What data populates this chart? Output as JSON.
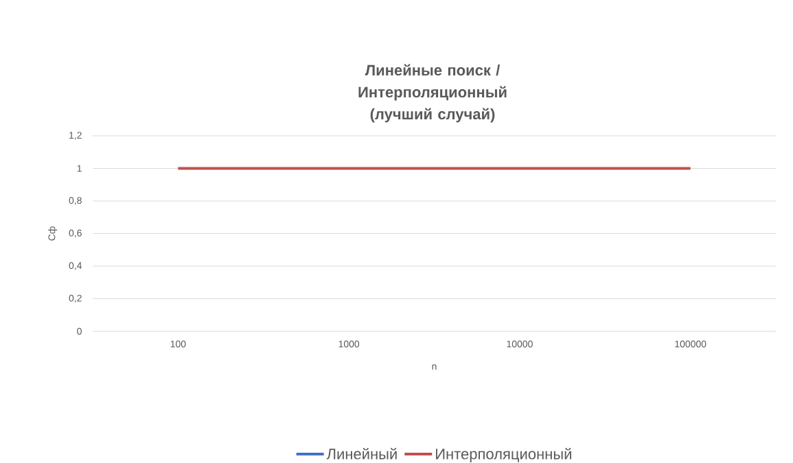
{
  "chart_data": {
    "type": "line",
    "title": "Линейные поиск / Интерполяционный (лучший случай)",
    "xlabel": "n",
    "ylabel": "Сф",
    "categories": [
      "100",
      "1000",
      "10000",
      "100000"
    ],
    "series": [
      {
        "name": "Линейный",
        "color": "#4472c4",
        "values": [
          null,
          null,
          null,
          null
        ]
      },
      {
        "name": "Интерполяционный",
        "color": "#c0504d",
        "values": [
          1,
          1,
          1,
          1
        ]
      }
    ],
    "ylim": [
      0,
      1.2
    ],
    "yticks": [
      0,
      {
        "value": 0.2,
        "label": "0,2"
      },
      {
        "value": 0.4,
        "label": "0,4"
      },
      {
        "value": 0.6,
        "label": "0,6"
      },
      {
        "value": 0.8,
        "label": "0,8"
      },
      1,
      {
        "value": 1.2,
        "label": "1,2"
      }
    ],
    "grid": "y",
    "legend": "bottom",
    "line_style": "solid"
  }
}
